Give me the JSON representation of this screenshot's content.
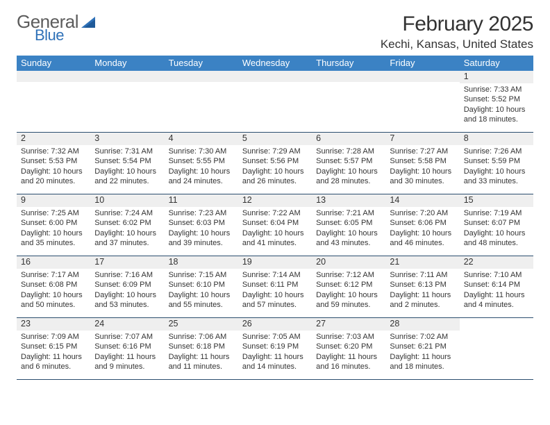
{
  "brand": {
    "word1": "General",
    "word2": "Blue",
    "mark_color": "#2f71b8"
  },
  "header": {
    "title": "February 2025",
    "location": "Kechi, Kansas, United States"
  },
  "style": {
    "header_bg": "#3b82c4",
    "daynum_bg": "#efefef",
    "rule_color": "#2a4d6e",
    "text_color": "#333333",
    "page_bg": "#ffffff",
    "title_fontsize": 30,
    "location_fontsize": 17,
    "weekday_fontsize": 13,
    "daynum_fontsize": 12.5,
    "body_fontsize": 11
  },
  "weekdays": [
    "Sunday",
    "Monday",
    "Tuesday",
    "Wednesday",
    "Thursday",
    "Friday",
    "Saturday"
  ],
  "weeks": [
    [
      null,
      null,
      null,
      null,
      null,
      null,
      {
        "day": "1",
        "sunrise": "Sunrise: 7:33 AM",
        "sunset": "Sunset: 5:52 PM",
        "daylight1": "Daylight: 10 hours",
        "daylight2": "and 18 minutes."
      }
    ],
    [
      {
        "day": "2",
        "sunrise": "Sunrise: 7:32 AM",
        "sunset": "Sunset: 5:53 PM",
        "daylight1": "Daylight: 10 hours",
        "daylight2": "and 20 minutes."
      },
      {
        "day": "3",
        "sunrise": "Sunrise: 7:31 AM",
        "sunset": "Sunset: 5:54 PM",
        "daylight1": "Daylight: 10 hours",
        "daylight2": "and 22 minutes."
      },
      {
        "day": "4",
        "sunrise": "Sunrise: 7:30 AM",
        "sunset": "Sunset: 5:55 PM",
        "daylight1": "Daylight: 10 hours",
        "daylight2": "and 24 minutes."
      },
      {
        "day": "5",
        "sunrise": "Sunrise: 7:29 AM",
        "sunset": "Sunset: 5:56 PM",
        "daylight1": "Daylight: 10 hours",
        "daylight2": "and 26 minutes."
      },
      {
        "day": "6",
        "sunrise": "Sunrise: 7:28 AM",
        "sunset": "Sunset: 5:57 PM",
        "daylight1": "Daylight: 10 hours",
        "daylight2": "and 28 minutes."
      },
      {
        "day": "7",
        "sunrise": "Sunrise: 7:27 AM",
        "sunset": "Sunset: 5:58 PM",
        "daylight1": "Daylight: 10 hours",
        "daylight2": "and 30 minutes."
      },
      {
        "day": "8",
        "sunrise": "Sunrise: 7:26 AM",
        "sunset": "Sunset: 5:59 PM",
        "daylight1": "Daylight: 10 hours",
        "daylight2": "and 33 minutes."
      }
    ],
    [
      {
        "day": "9",
        "sunrise": "Sunrise: 7:25 AM",
        "sunset": "Sunset: 6:00 PM",
        "daylight1": "Daylight: 10 hours",
        "daylight2": "and 35 minutes."
      },
      {
        "day": "10",
        "sunrise": "Sunrise: 7:24 AM",
        "sunset": "Sunset: 6:02 PM",
        "daylight1": "Daylight: 10 hours",
        "daylight2": "and 37 minutes."
      },
      {
        "day": "11",
        "sunrise": "Sunrise: 7:23 AM",
        "sunset": "Sunset: 6:03 PM",
        "daylight1": "Daylight: 10 hours",
        "daylight2": "and 39 minutes."
      },
      {
        "day": "12",
        "sunrise": "Sunrise: 7:22 AM",
        "sunset": "Sunset: 6:04 PM",
        "daylight1": "Daylight: 10 hours",
        "daylight2": "and 41 minutes."
      },
      {
        "day": "13",
        "sunrise": "Sunrise: 7:21 AM",
        "sunset": "Sunset: 6:05 PM",
        "daylight1": "Daylight: 10 hours",
        "daylight2": "and 43 minutes."
      },
      {
        "day": "14",
        "sunrise": "Sunrise: 7:20 AM",
        "sunset": "Sunset: 6:06 PM",
        "daylight1": "Daylight: 10 hours",
        "daylight2": "and 46 minutes."
      },
      {
        "day": "15",
        "sunrise": "Sunrise: 7:19 AM",
        "sunset": "Sunset: 6:07 PM",
        "daylight1": "Daylight: 10 hours",
        "daylight2": "and 48 minutes."
      }
    ],
    [
      {
        "day": "16",
        "sunrise": "Sunrise: 7:17 AM",
        "sunset": "Sunset: 6:08 PM",
        "daylight1": "Daylight: 10 hours",
        "daylight2": "and 50 minutes."
      },
      {
        "day": "17",
        "sunrise": "Sunrise: 7:16 AM",
        "sunset": "Sunset: 6:09 PM",
        "daylight1": "Daylight: 10 hours",
        "daylight2": "and 53 minutes."
      },
      {
        "day": "18",
        "sunrise": "Sunrise: 7:15 AM",
        "sunset": "Sunset: 6:10 PM",
        "daylight1": "Daylight: 10 hours",
        "daylight2": "and 55 minutes."
      },
      {
        "day": "19",
        "sunrise": "Sunrise: 7:14 AM",
        "sunset": "Sunset: 6:11 PM",
        "daylight1": "Daylight: 10 hours",
        "daylight2": "and 57 minutes."
      },
      {
        "day": "20",
        "sunrise": "Sunrise: 7:12 AM",
        "sunset": "Sunset: 6:12 PM",
        "daylight1": "Daylight: 10 hours",
        "daylight2": "and 59 minutes."
      },
      {
        "day": "21",
        "sunrise": "Sunrise: 7:11 AM",
        "sunset": "Sunset: 6:13 PM",
        "daylight1": "Daylight: 11 hours",
        "daylight2": "and 2 minutes."
      },
      {
        "day": "22",
        "sunrise": "Sunrise: 7:10 AM",
        "sunset": "Sunset: 6:14 PM",
        "daylight1": "Daylight: 11 hours",
        "daylight2": "and 4 minutes."
      }
    ],
    [
      {
        "day": "23",
        "sunrise": "Sunrise: 7:09 AM",
        "sunset": "Sunset: 6:15 PM",
        "daylight1": "Daylight: 11 hours",
        "daylight2": "and 6 minutes."
      },
      {
        "day": "24",
        "sunrise": "Sunrise: 7:07 AM",
        "sunset": "Sunset: 6:16 PM",
        "daylight1": "Daylight: 11 hours",
        "daylight2": "and 9 minutes."
      },
      {
        "day": "25",
        "sunrise": "Sunrise: 7:06 AM",
        "sunset": "Sunset: 6:18 PM",
        "daylight1": "Daylight: 11 hours",
        "daylight2": "and 11 minutes."
      },
      {
        "day": "26",
        "sunrise": "Sunrise: 7:05 AM",
        "sunset": "Sunset: 6:19 PM",
        "daylight1": "Daylight: 11 hours",
        "daylight2": "and 14 minutes."
      },
      {
        "day": "27",
        "sunrise": "Sunrise: 7:03 AM",
        "sunset": "Sunset: 6:20 PM",
        "daylight1": "Daylight: 11 hours",
        "daylight2": "and 16 minutes."
      },
      {
        "day": "28",
        "sunrise": "Sunrise: 7:02 AM",
        "sunset": "Sunset: 6:21 PM",
        "daylight1": "Daylight: 11 hours",
        "daylight2": "and 18 minutes."
      },
      null
    ]
  ]
}
